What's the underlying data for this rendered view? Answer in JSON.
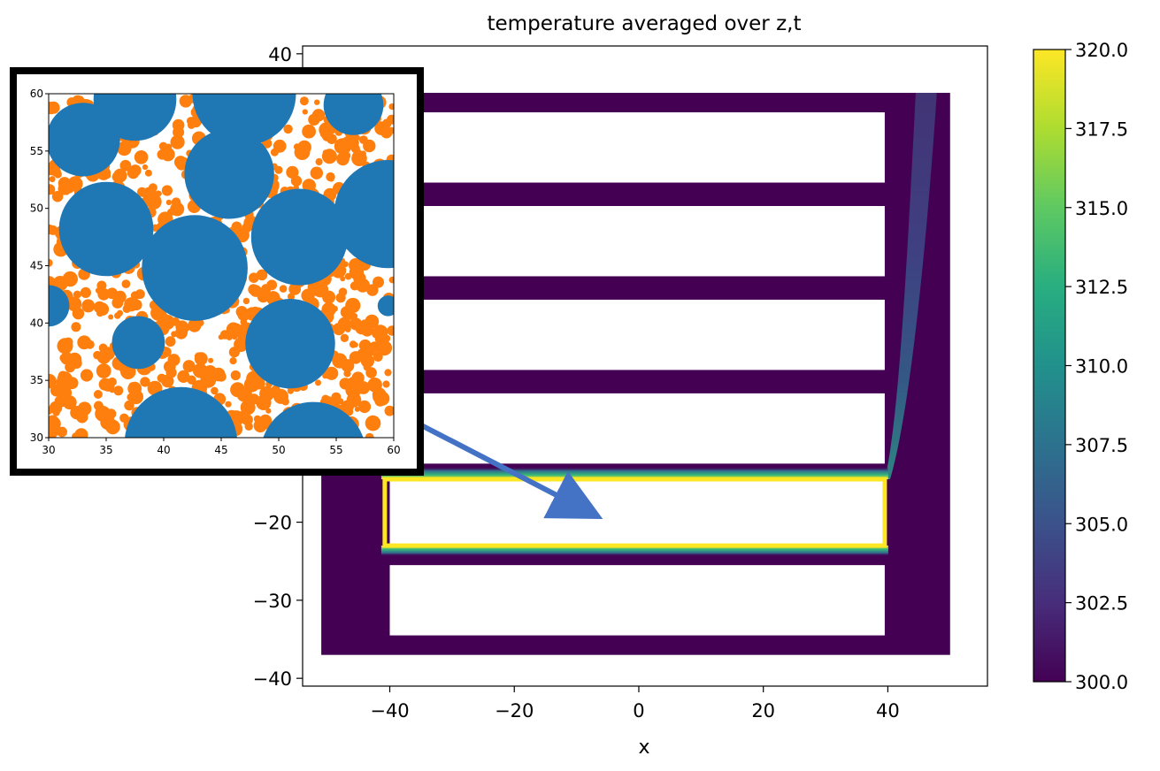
{
  "chart_data": [
    {
      "type": "heatmap",
      "title": "temperature averaged over z,t",
      "xlabel": "x",
      "ylabel": "",
      "xlim": [
        -54,
        56
      ],
      "ylim": [
        -41,
        41
      ],
      "xticks": [
        -40,
        -20,
        0,
        20,
        40
      ],
      "yticks": [
        -40,
        -30,
        -20,
        40
      ],
      "xtick_labels": [
        "−40",
        "−20",
        "0",
        "20",
        "40"
      ],
      "ytick_labels": [
        "−40",
        "−30",
        "−20",
        "40"
      ],
      "domain": {
        "x": [
          -51,
          50
        ],
        "y": [
          -37,
          35
        ]
      },
      "background_value": 300.0,
      "wall_band_x": [
        39.5,
        50
      ],
      "slots": [
        {
          "x": [
            -40,
            39.5
          ],
          "y": [
            23.5,
            32.5
          ]
        },
        {
          "x": [
            -40,
            39.5
          ],
          "y": [
            11.5,
            20.5
          ]
        },
        {
          "x": [
            -40,
            39.5
          ],
          "y": [
            -0.5,
            8.5
          ]
        },
        {
          "x": [
            -40,
            39.5
          ],
          "y": [
            -12.5,
            -3.5
          ]
        },
        {
          "x": [
            -40,
            39.5
          ],
          "y": [
            -23,
            -14.5
          ]
        },
        {
          "x": [
            -40,
            39.5
          ],
          "y": [
            -34.5,
            -25.5
          ]
        }
      ],
      "heated_slot": {
        "x": [
          -40.8,
          39.5
        ],
        "y": [
          -23,
          -14.5
        ],
        "value": 320.0
      },
      "colorbar": {
        "colormap": "viridis",
        "range": [
          300.0,
          320.0
        ],
        "ticks": [
          300.0,
          302.5,
          305.0,
          307.5,
          310.0,
          312.5,
          315.0,
          317.5,
          320.0
        ],
        "tick_labels": [
          "300.0",
          "302.5",
          "305.0",
          "307.5",
          "310.0",
          "312.5",
          "315.0",
          "317.5",
          "320.0"
        ]
      }
    },
    {
      "type": "scatter",
      "title": "",
      "xlabel": "",
      "ylabel": "",
      "xlim": [
        30,
        60
      ],
      "ylim": [
        30,
        60
      ],
      "xticks": [
        30,
        35,
        40,
        45,
        50,
        55,
        60
      ],
      "yticks": [
        30,
        35,
        40,
        45,
        50,
        55,
        60
      ],
      "xtick_labels": [
        "30",
        "35",
        "40",
        "45",
        "50",
        "55",
        "60"
      ],
      "ytick_labels": [
        "30",
        "35",
        "40",
        "45",
        "50",
        "55",
        "60"
      ],
      "series": [
        {
          "color": "#1f77b4",
          "circles": [
            {
              "x": 33.0,
              "y": 56.0,
              "r": 3.2
            },
            {
              "x": 37.5,
              "y": 59.5,
              "r": 3.6
            },
            {
              "x": 47.0,
              "y": 60.0,
              "r": 4.5
            },
            {
              "x": 56.5,
              "y": 59.0,
              "r": 2.6
            },
            {
              "x": 45.7,
              "y": 53.0,
              "r": 3.9
            },
            {
              "x": 35.0,
              "y": 48.2,
              "r": 4.1
            },
            {
              "x": 59.5,
              "y": 49.5,
              "r": 4.7
            },
            {
              "x": 51.8,
              "y": 47.5,
              "r": 4.2
            },
            {
              "x": 42.7,
              "y": 44.8,
              "r": 4.6
            },
            {
              "x": 30.0,
              "y": 41.5,
              "r": 1.8
            },
            {
              "x": 51.0,
              "y": 38.2,
              "r": 3.9
            },
            {
              "x": 37.8,
              "y": 38.3,
              "r": 2.3
            },
            {
              "x": 59.5,
              "y": 41.5,
              "r": 0.9
            },
            {
              "x": 41.5,
              "y": 29.5,
              "r": 4.9
            },
            {
              "x": 53.0,
              "y": 28.5,
              "r": 4.6
            }
          ]
        }
      ],
      "filler_color": "#ff7f0e"
    }
  ],
  "colors": {
    "accent": "#4472c4",
    "inset_border": "#000000",
    "orange": "#ff7f0e",
    "blue": "#1f77b4"
  }
}
